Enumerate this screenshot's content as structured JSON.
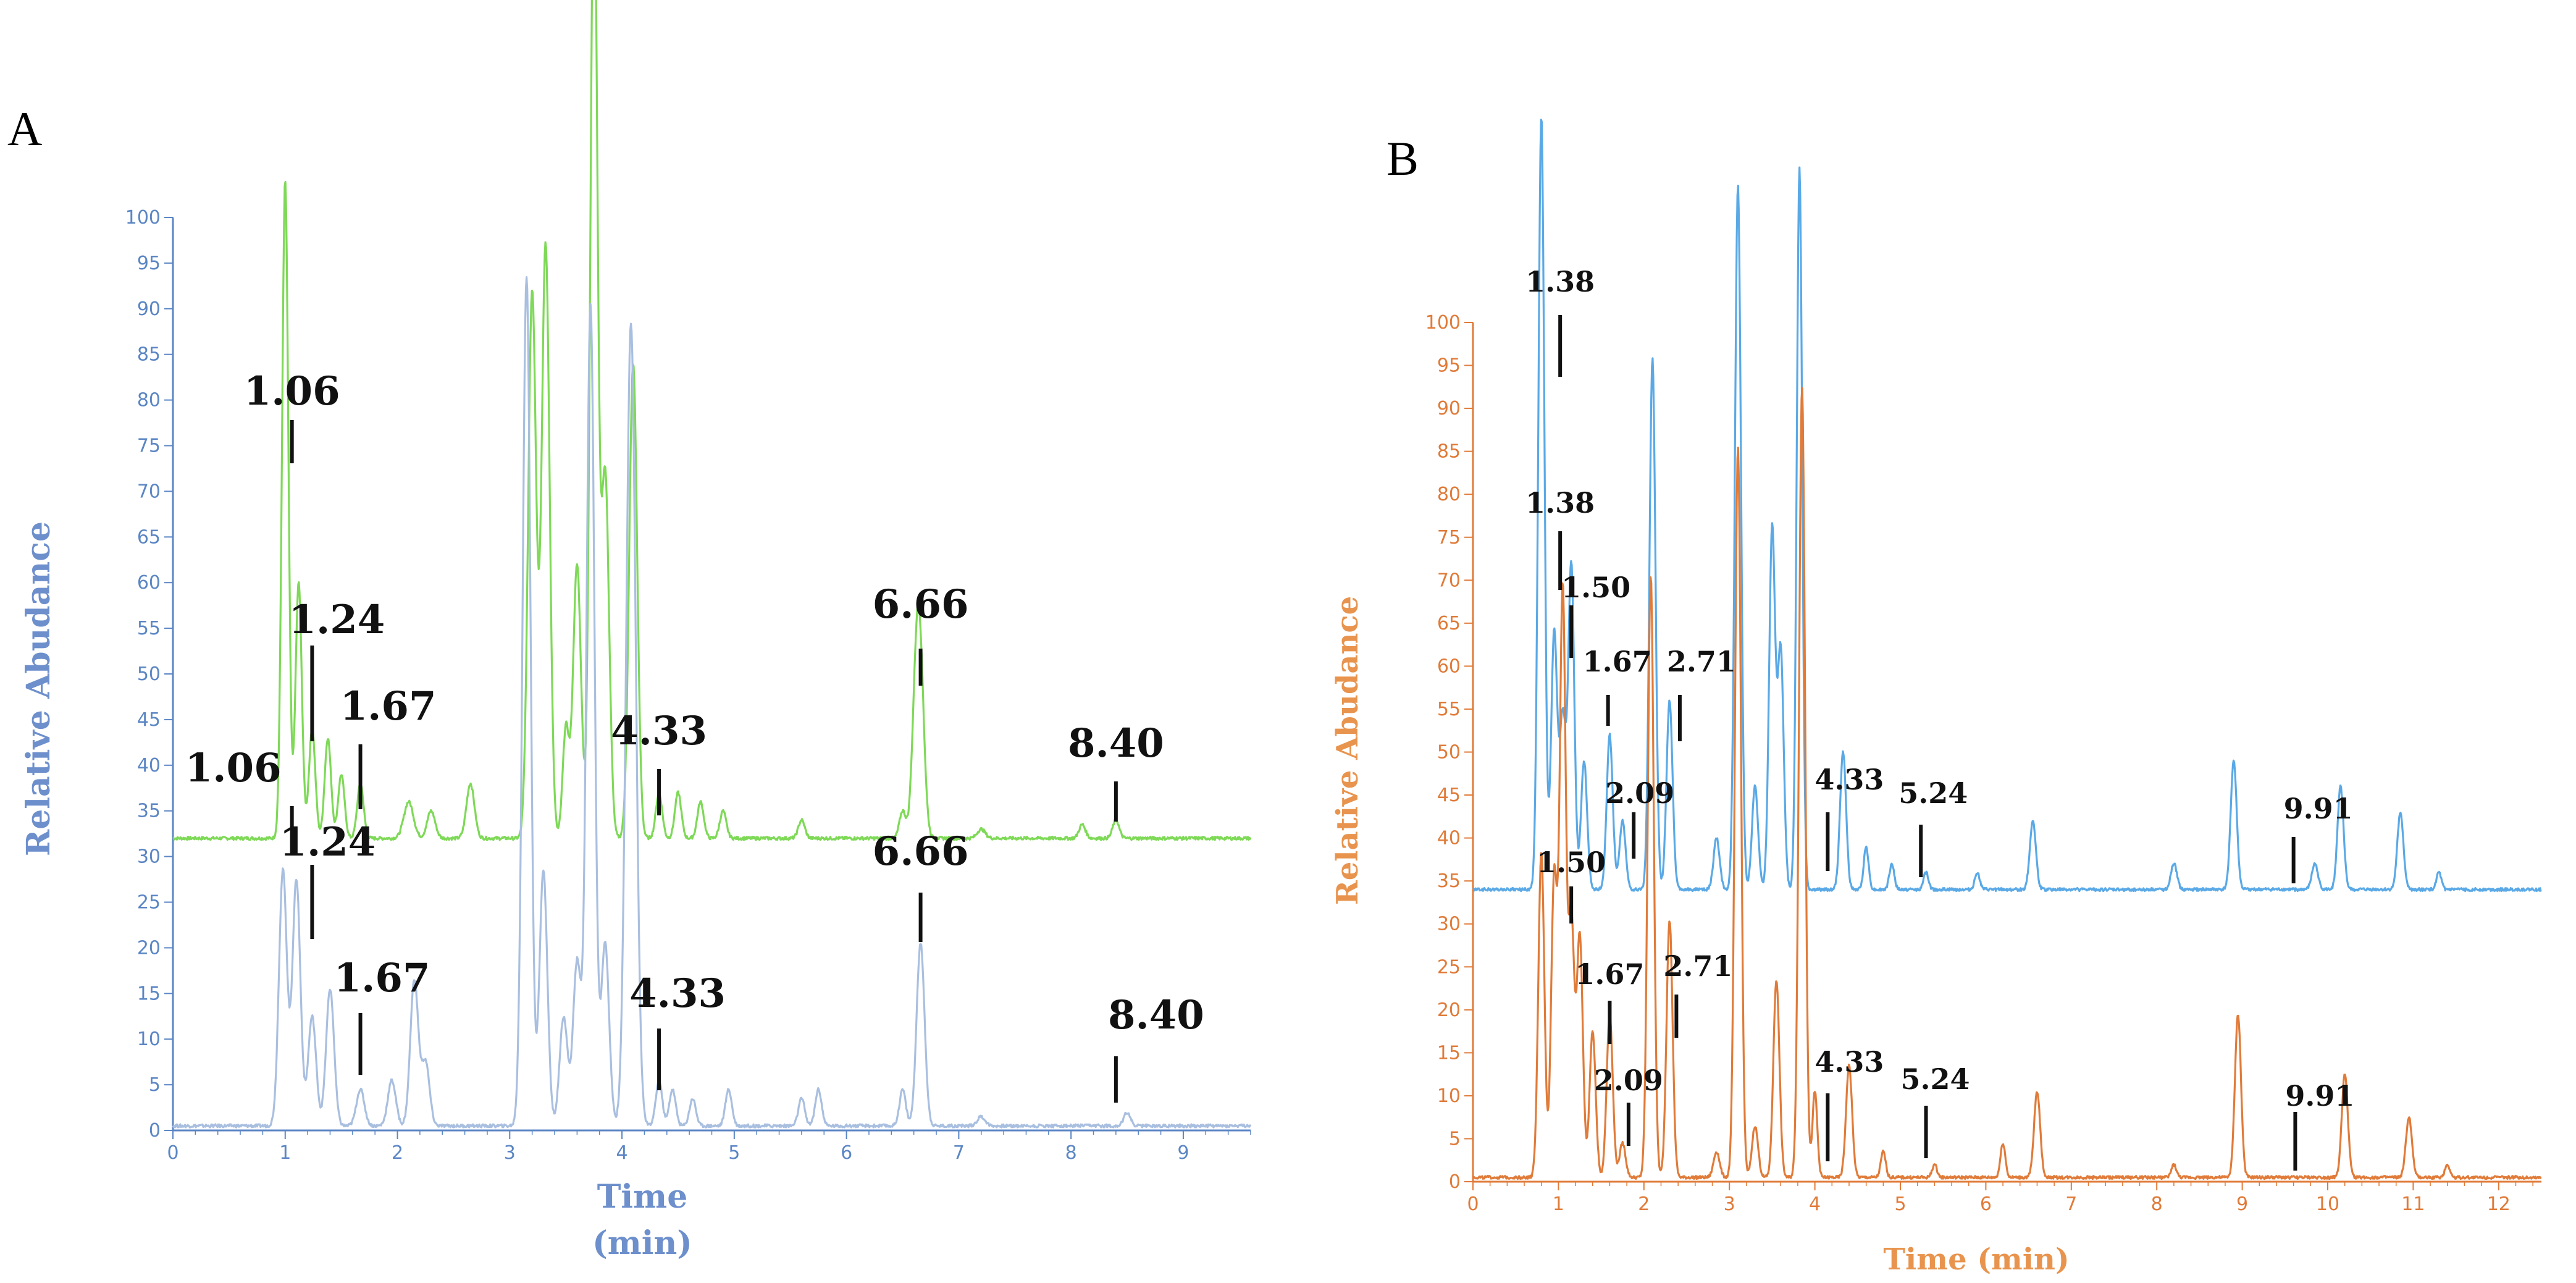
{
  "panels": [
    {
      "letter": "A",
      "ylabel": "Relative Abudance",
      "xlabel_line1": "Time",
      "xlabel_line2": "(min)",
      "colors": {
        "axis": "#5b86c4",
        "title": "#6d8fcc",
        "upper": "#7ed957",
        "lower": "#a9bfe0"
      }
    },
    {
      "letter": "B",
      "ylabel": "Relative Abudance",
      "xlabel": "Time (min)",
      "colors": {
        "axis": "#e07b39",
        "title": "#e8944e",
        "upper": "#5aa9e6",
        "lower": "#e07b39"
      }
    }
  ],
  "chart_data": [
    {
      "type": "line",
      "panel": "A",
      "title": "",
      "xlabel": "Time (min)",
      "ylabel": "Relative Abudance",
      "xlim": [
        0,
        9.6
      ],
      "ylim": [
        0,
        100
      ],
      "xticks": [
        "0",
        "1",
        "2",
        "3",
        "4",
        "5",
        "6",
        "7",
        "8",
        "9"
      ],
      "yticks": [
        "0",
        "5",
        "10",
        "15",
        "20",
        "25",
        "30",
        "35",
        "40",
        "45",
        "50",
        "55",
        "60",
        "65",
        "70",
        "75",
        "80",
        "85",
        "90",
        "95",
        "100"
      ],
      "series": [
        {
          "name": "upper trace (green)",
          "baseline": 32,
          "peaks": [
            [
              1.0,
              72,
              0.04
            ],
            [
              1.12,
              28,
              0.04
            ],
            [
              1.24,
              12,
              0.04
            ],
            [
              1.38,
              11,
              0.04
            ],
            [
              1.5,
              7,
              0.04
            ],
            [
              1.67,
              6,
              0.04
            ],
            [
              2.1,
              4,
              0.06
            ],
            [
              2.3,
              3,
              0.05
            ],
            [
              2.65,
              6,
              0.05
            ],
            [
              3.2,
              60,
              0.05
            ],
            [
              3.32,
              65,
              0.05
            ],
            [
              3.5,
              12,
              0.04
            ],
            [
              3.6,
              30,
              0.05
            ],
            [
              3.75,
              108,
              0.045
            ],
            [
              3.85,
              40,
              0.05
            ],
            [
              4.1,
              52,
              0.05
            ],
            [
              4.33,
              5,
              0.04
            ],
            [
              4.5,
              5,
              0.04
            ],
            [
              4.7,
              4,
              0.04
            ],
            [
              4.9,
              3,
              0.04
            ],
            [
              5.6,
              2,
              0.04
            ],
            [
              6.5,
              3,
              0.04
            ],
            [
              6.62,
              15,
              0.05
            ],
            [
              6.66,
              15,
              0.05
            ],
            [
              7.2,
              1,
              0.05
            ],
            [
              8.1,
              1.5,
              0.04
            ],
            [
              8.4,
              2,
              0.04
            ]
          ]
        },
        {
          "name": "lower trace (light blue)",
          "baseline": 0.5,
          "peaks": [
            [
              0.98,
              28,
              0.05
            ],
            [
              1.1,
              27,
              0.05
            ],
            [
              1.24,
              12,
              0.05
            ],
            [
              1.4,
              15,
              0.05
            ],
            [
              1.67,
              4,
              0.05
            ],
            [
              1.95,
              5,
              0.05
            ],
            [
              2.15,
              16,
              0.05
            ],
            [
              2.25,
              7,
              0.05
            ],
            [
              3.15,
              93,
              0.05
            ],
            [
              3.3,
              28,
              0.05
            ],
            [
              3.48,
              12,
              0.05
            ],
            [
              3.6,
              18,
              0.05
            ],
            [
              3.72,
              90,
              0.05
            ],
            [
              3.85,
              20,
              0.05
            ],
            [
              4.08,
              88,
              0.06
            ],
            [
              4.33,
              5,
              0.04
            ],
            [
              4.45,
              4,
              0.04
            ],
            [
              4.63,
              3,
              0.04
            ],
            [
              4.95,
              4,
              0.04
            ],
            [
              5.6,
              3,
              0.04
            ],
            [
              5.75,
              4,
              0.04
            ],
            [
              6.5,
              4,
              0.04
            ],
            [
              6.66,
              20,
              0.05
            ],
            [
              7.2,
              1,
              0.05
            ],
            [
              8.5,
              1.5,
              0.04
            ]
          ]
        }
      ],
      "annotations": [
        {
          "text": "1.06",
          "series": "upper",
          "time": 1.06
        },
        {
          "text": "1.24",
          "series": "upper",
          "time": 1.24
        },
        {
          "text": "1.67",
          "series": "upper",
          "time": 1.67
        },
        {
          "text": "4.33",
          "series": "upper",
          "time": 4.33
        },
        {
          "text": "6.66",
          "series": "upper",
          "time": 6.66
        },
        {
          "text": "8.40",
          "series": "upper",
          "time": 8.4
        },
        {
          "text": "1.06",
          "series": "lower",
          "time": 1.06
        },
        {
          "text": "1.24",
          "series": "lower",
          "time": 1.24
        },
        {
          "text": "1.67",
          "series": "lower",
          "time": 1.67
        },
        {
          "text": "4.33",
          "series": "lower",
          "time": 4.33
        },
        {
          "text": "6.66",
          "series": "lower",
          "time": 6.66
        },
        {
          "text": "8.40",
          "series": "lower",
          "time": 8.4
        }
      ]
    },
    {
      "type": "line",
      "panel": "B",
      "title": "",
      "xlabel": "Time (min)",
      "ylabel": "Relative Abudance",
      "xlim": [
        0,
        12.5
      ],
      "ylim": [
        0,
        100
      ],
      "xticks": [
        "0",
        "1",
        "2",
        "3",
        "4",
        "5",
        "6",
        "7",
        "8",
        "9",
        "10",
        "11",
        "12"
      ],
      "yticks": [
        "0",
        "5",
        "10",
        "15",
        "20",
        "25",
        "30",
        "35",
        "40",
        "45",
        "50",
        "55",
        "60",
        "65",
        "70",
        "75",
        "80",
        "85",
        "90",
        "95",
        "100"
      ],
      "series": [
        {
          "name": "upper trace (blue)",
          "baseline": 34,
          "peaks": [
            [
              0.8,
              90,
              0.05
            ],
            [
              0.95,
              30,
              0.05
            ],
            [
              1.05,
              20,
              0.05
            ],
            [
              1.15,
              38,
              0.05
            ],
            [
              1.3,
              15,
              0.05
            ],
            [
              1.6,
              18,
              0.05
            ],
            [
              1.75,
              8,
              0.05
            ],
            [
              2.1,
              62,
              0.05
            ],
            [
              2.3,
              22,
              0.05
            ],
            [
              2.85,
              6,
              0.05
            ],
            [
              3.1,
              82,
              0.05
            ],
            [
              3.3,
              12,
              0.05
            ],
            [
              3.5,
              42,
              0.05
            ],
            [
              3.6,
              28,
              0.05
            ],
            [
              3.82,
              84,
              0.045
            ],
            [
              4.33,
              16,
              0.05
            ],
            [
              4.6,
              5,
              0.04
            ],
            [
              4.9,
              3,
              0.04
            ],
            [
              5.3,
              2,
              0.04
            ],
            [
              5.9,
              2,
              0.04
            ],
            [
              6.55,
              8,
              0.05
            ],
            [
              8.2,
              3,
              0.05
            ],
            [
              8.9,
              15,
              0.05
            ],
            [
              9.85,
              3,
              0.05
            ],
            [
              10.15,
              12,
              0.05
            ],
            [
              10.85,
              9,
              0.05
            ],
            [
              11.3,
              2,
              0.04
            ]
          ]
        },
        {
          "name": "lower trace (orange)",
          "baseline": 0.5,
          "peaks": [
            [
              0.8,
              38,
              0.05
            ],
            [
              0.95,
              35,
              0.05
            ],
            [
              1.05,
              68,
              0.05
            ],
            [
              1.15,
              30,
              0.05
            ],
            [
              1.25,
              28,
              0.05
            ],
            [
              1.4,
              17,
              0.05
            ],
            [
              1.6,
              19,
              0.05
            ],
            [
              1.75,
              4,
              0.05
            ],
            [
              2.08,
              70,
              0.05
            ],
            [
              2.3,
              30,
              0.05
            ],
            [
              2.85,
              3,
              0.05
            ],
            [
              3.1,
              85,
              0.05
            ],
            [
              3.3,
              6,
              0.05
            ],
            [
              3.55,
              23,
              0.05
            ],
            [
              3.85,
              92,
              0.05
            ],
            [
              4.0,
              10,
              0.04
            ],
            [
              4.4,
              13,
              0.05
            ],
            [
              4.8,
              3,
              0.04
            ],
            [
              5.4,
              1.5,
              0.04
            ],
            [
              6.2,
              4,
              0.04
            ],
            [
              6.6,
              10,
              0.05
            ],
            [
              8.2,
              1.5,
              0.04
            ],
            [
              8.95,
              19,
              0.05
            ],
            [
              10.2,
              12,
              0.05
            ],
            [
              10.95,
              7,
              0.05
            ],
            [
              11.4,
              1.5,
              0.04
            ]
          ]
        }
      ],
      "annotations": [
        {
          "text": "1.38",
          "series": "upper",
          "time": 1.02
        },
        {
          "text": "1.38",
          "series": "upper-mid",
          "time": 1.02
        },
        {
          "text": "1.50",
          "series": "upper-mid",
          "time": 1.15
        },
        {
          "text": "1.67",
          "series": "upper",
          "time": 1.58
        },
        {
          "text": "2.71",
          "series": "upper",
          "time": 2.42
        },
        {
          "text": "2.09",
          "series": "upper",
          "time": 1.88
        },
        {
          "text": "4.33",
          "series": "upper",
          "time": 4.15
        },
        {
          "text": "5.24",
          "series": "upper",
          "time": 5.24
        },
        {
          "text": "9.91",
          "series": "upper",
          "time": 9.6
        },
        {
          "text": "1.50",
          "series": "lower",
          "time": 1.15
        },
        {
          "text": "1.67",
          "series": "lower",
          "time": 1.6
        },
        {
          "text": "2.71",
          "series": "lower",
          "time": 2.38
        },
        {
          "text": "2.09",
          "series": "lower",
          "time": 1.82
        },
        {
          "text": "4.33",
          "series": "lower",
          "time": 4.15
        },
        {
          "text": "5.24",
          "series": "lower",
          "time": 5.3
        },
        {
          "text": "9.91",
          "series": "lower",
          "time": 9.62
        }
      ]
    }
  ]
}
